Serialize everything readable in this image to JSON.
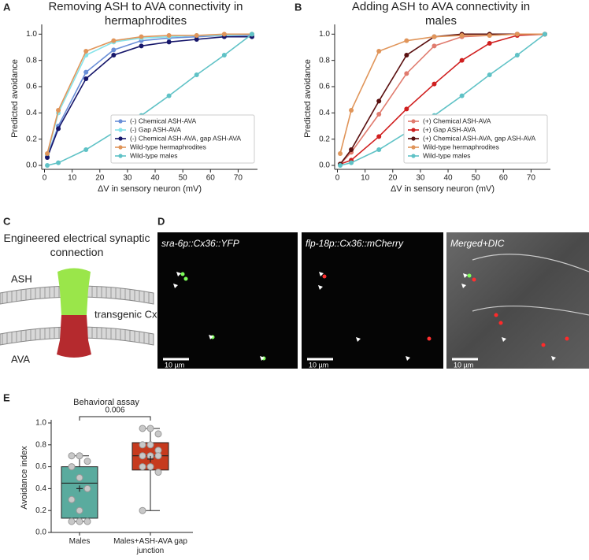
{
  "panel_letters": [
    "A",
    "B",
    "C",
    "D",
    "E"
  ],
  "chart_data": [
    {
      "type": "line",
      "title": "Removing ASH to AVA connectivity in hermaphrodites",
      "x_label": "ΔV in sensory neuron (mV)",
      "y_label": "Predicted avoidance",
      "x": [
        1,
        5,
        15,
        25,
        35,
        45,
        55,
        65,
        75
      ],
      "xlim": [
        -1,
        77
      ],
      "xticks": [
        0,
        10,
        20,
        30,
        40,
        50,
        60,
        70
      ],
      "ylim": [
        -0.03,
        1.05
      ],
      "yticks": [
        {
          "value": 0,
          "label": "0.0"
        },
        {
          "value": 0.2,
          "label": "0.2"
        },
        {
          "value": 0.4,
          "label": "0.4"
        },
        {
          "value": 0.6,
          "label": "0.6"
        },
        {
          "value": 0.8,
          "label": "0.8"
        },
        {
          "value": 1,
          "label": "1.0"
        }
      ],
      "legend": "lower right",
      "series": [
        {
          "name": "(-) Chemical ASH-AVA",
          "color": "#6a8fd8",
          "values": [
            0.07,
            0.3,
            0.71,
            0.88,
            0.95,
            0.97,
            0.98,
            0.99,
            0.99
          ]
        },
        {
          "name": "(-) Gap ASH-AVA",
          "color": "#86e3ea",
          "values": [
            0.08,
            0.4,
            0.84,
            0.94,
            0.97,
            0.98,
            0.99,
            0.99,
            1.0
          ]
        },
        {
          "name": "(-) Chemical ASH-AVA, gap ASH-AVA",
          "color": "#16166a",
          "values": [
            0.06,
            0.28,
            0.66,
            0.84,
            0.91,
            0.94,
            0.96,
            0.98,
            0.98
          ]
        },
        {
          "name": "Wild-type hermaphrodites",
          "color": "#e0955a",
          "values": [
            0.09,
            0.42,
            0.87,
            0.95,
            0.98,
            0.99,
            0.99,
            1.0,
            1.0
          ]
        },
        {
          "name": "Wild-type males",
          "color": "#5fc2c6",
          "values": [
            0.0,
            0.02,
            0.12,
            0.25,
            0.38,
            0.53,
            0.69,
            0.84,
            1.0
          ]
        }
      ]
    },
    {
      "type": "line",
      "title": "Adding ASH to AVA connectivity in males",
      "x_label": "ΔV in sensory neuron (mV)",
      "y_label": "Predicted avoidance",
      "x": [
        1,
        5,
        15,
        25,
        35,
        45,
        55,
        65,
        75
      ],
      "xlim": [
        -1,
        77
      ],
      "xticks": [
        0,
        10,
        20,
        30,
        40,
        50,
        60,
        70
      ],
      "ylim": [
        -0.03,
        1.05
      ],
      "yticks": [
        {
          "value": 0,
          "label": "0.0"
        },
        {
          "value": 0.2,
          "label": "0.2"
        },
        {
          "value": 0.4,
          "label": "0.4"
        },
        {
          "value": 0.6,
          "label": "0.6"
        },
        {
          "value": 0.8,
          "label": "0.8"
        },
        {
          "value": 1,
          "label": "1.0"
        }
      ],
      "legend": "lower right",
      "series": [
        {
          "name": "(+) Chemical ASH-AVA",
          "color": "#e07b6e",
          "values": [
            0.01,
            0.1,
            0.39,
            0.7,
            0.91,
            0.98,
            0.99,
            1.0,
            1.0
          ]
        },
        {
          "name": "(+) Gap ASH-AVA",
          "color": "#d01f1f",
          "values": [
            0.01,
            0.04,
            0.22,
            0.43,
            0.62,
            0.8,
            0.93,
            0.99,
            1.0
          ]
        },
        {
          "name": "(+) Chemical ASH-AVA, gap ASH-AVA",
          "color": "#5a1010",
          "values": [
            0.01,
            0.12,
            0.49,
            0.84,
            0.98,
            1.0,
            1.0,
            1.0,
            1.0
          ]
        },
        {
          "name": "Wild-type hermaphrodites",
          "color": "#e0955a",
          "values": [
            0.09,
            0.42,
            0.87,
            0.95,
            0.98,
            0.99,
            0.99,
            1.0,
            1.0
          ]
        },
        {
          "name": "Wild-type males",
          "color": "#5fc2c6",
          "values": [
            0.0,
            0.02,
            0.12,
            0.25,
            0.38,
            0.53,
            0.69,
            0.84,
            1.0
          ]
        }
      ]
    },
    {
      "type": "box",
      "title": "Behavioral assay",
      "y_label": "Avoidance index",
      "categories": [
        "Males",
        "Males+ASH-AVA gap junction"
      ],
      "ylim": [
        0,
        1
      ],
      "yticks": [
        {
          "value": 0,
          "label": "0.0"
        },
        {
          "value": 0.2,
          "label": "0.2"
        },
        {
          "value": 0.4,
          "label": "0.4"
        },
        {
          "value": 0.6,
          "label": "0.6"
        },
        {
          "value": 0.8,
          "label": "0.8"
        },
        {
          "value": 1,
          "label": "1.0"
        }
      ],
      "p_value": "0.006",
      "boxes": [
        {
          "color": "#5aab9e",
          "low": 0.1,
          "q1": 0.13,
          "median": 0.45,
          "q3": 0.6,
          "high": 0.7,
          "mean": 0.4,
          "points": [
            0.7,
            0.7,
            0.65,
            0.6,
            0.5,
            0.4,
            0.3,
            0.2,
            0.1,
            0.1,
            0.1
          ]
        },
        {
          "color": "#c63a1e",
          "low": 0.2,
          "q1": 0.57,
          "median": 0.7,
          "q3": 0.82,
          "high": 0.95,
          "mean": 0.67,
          "points": [
            0.95,
            0.95,
            0.9,
            0.8,
            0.8,
            0.75,
            0.7,
            0.7,
            0.7,
            0.6,
            0.6,
            0.55,
            0.2
          ]
        }
      ]
    }
  ],
  "diagram": {
    "title": "Engineered electrical synaptic connection",
    "top_label": "ASH",
    "bottom_label": "AVA",
    "channel_label": "transgenic Cx36"
  },
  "micrographs": [
    {
      "label": "sra-6p::Cx36::YFP",
      "scale": "10 µm"
    },
    {
      "label": "flp-18p::Cx36::mCherry",
      "scale": "10 µm"
    },
    {
      "label": "Merged+DIC",
      "scale": "10 µm"
    }
  ]
}
